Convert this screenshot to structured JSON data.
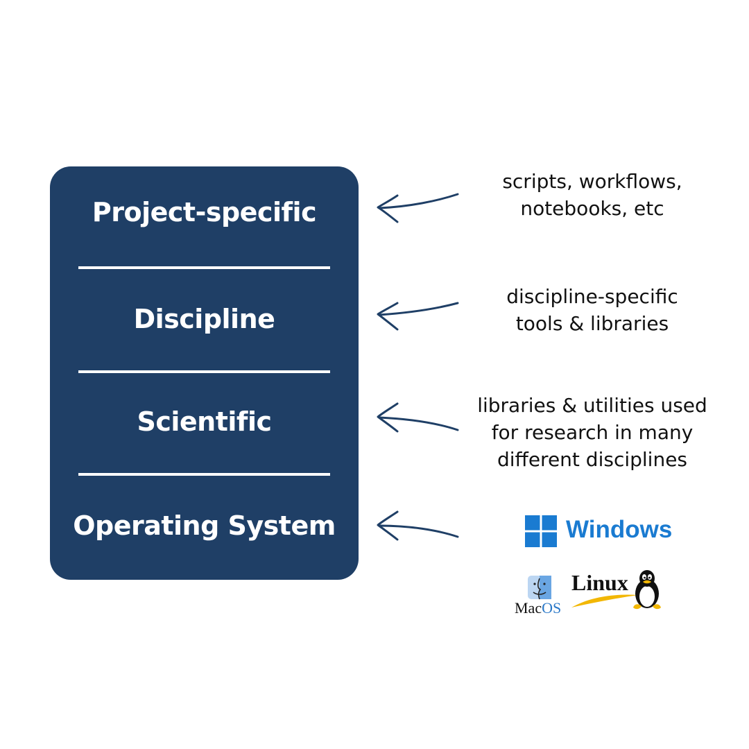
{
  "layers": [
    {
      "label": "Project-specific",
      "description": [
        "scripts, workflows,",
        "notebooks, etc"
      ]
    },
    {
      "label": "Discipline",
      "description": [
        "discipline-specific",
        "tools & libraries"
      ]
    },
    {
      "label": "Scientific",
      "description": [
        "libraries & utilities used",
        "for research in many",
        "different disciplines"
      ]
    },
    {
      "label": "Operating System",
      "description": []
    }
  ],
  "os_logos": {
    "windows": "Windows",
    "mac_prefix": "Mac",
    "mac_suffix": "OS",
    "linux": "Linux"
  },
  "colors": {
    "stack_fill": "#1f3f66",
    "arrow": "#1f3f66",
    "windows_blue": "#1a7bd1"
  },
  "icons": [
    "arrow-left-icon",
    "windows-logo-icon",
    "mac-finder-icon",
    "linux-tux-icon"
  ]
}
